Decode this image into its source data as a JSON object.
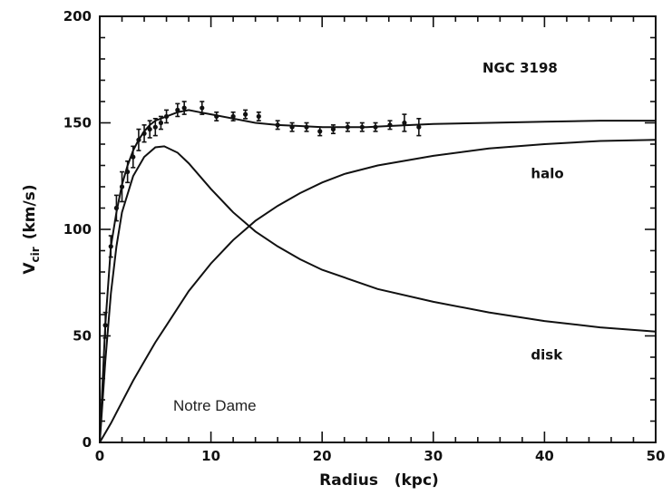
{
  "chart_data": {
    "type": "line",
    "annotation": "NGC 3198",
    "watermark": "Notre Dame",
    "xlabel": "Radius   (kpc)",
    "ylabel_main": "V",
    "ylabel_sub": "cir",
    "ylabel_unit": "(km/s)",
    "xlim": [
      0,
      50
    ],
    "ylim": [
      0,
      200
    ],
    "x_ticks": [
      "0",
      "10",
      "20",
      "30",
      "40",
      "50"
    ],
    "y_ticks": [
      "0",
      "50",
      "100",
      "150",
      "200"
    ],
    "grid": false,
    "series": [
      {
        "name": "",
        "kind": "total-fit",
        "x": [
          0,
          0.5,
          1,
          1.5,
          2,
          2.5,
          3,
          3.5,
          4,
          4.5,
          5,
          6,
          7,
          8,
          9,
          10,
          12,
          14,
          16,
          18,
          20,
          22,
          24,
          26,
          28,
          30,
          35,
          40,
          45,
          50
        ],
        "y": [
          0,
          55,
          92,
          108,
          121,
          130,
          137,
          142,
          146,
          149,
          151,
          153,
          155,
          156,
          155,
          154,
          152,
          150,
          149,
          148.5,
          148,
          148,
          148,
          148.5,
          149,
          149.5,
          150,
          150.5,
          151,
          151
        ]
      },
      {
        "name": "halo",
        "kind": "component",
        "x": [
          0,
          1,
          2,
          3,
          4,
          5,
          6,
          8,
          10,
          12,
          14,
          16,
          18,
          20,
          22,
          25,
          30,
          35,
          40,
          45,
          50
        ],
        "y": [
          0,
          9,
          19,
          29,
          38,
          47,
          55,
          71,
          84,
          95,
          104,
          111,
          117,
          122,
          126,
          130,
          134.5,
          138,
          140,
          141.5,
          142
        ]
      },
      {
        "name": "disk",
        "kind": "component",
        "x": [
          0,
          0.5,
          1,
          1.5,
          2,
          3,
          4,
          5,
          5.8,
          7,
          8,
          10,
          12,
          14,
          16,
          18,
          20,
          25,
          30,
          35,
          40,
          45,
          50
        ],
        "y": [
          0,
          38,
          70,
          92,
          108,
          125,
          134,
          138.5,
          139,
          136,
          131,
          119,
          108,
          99,
          92,
          86,
          81,
          72,
          66,
          61,
          57,
          54,
          52
        ]
      },
      {
        "name": "",
        "kind": "observed",
        "x": [
          0.5,
          1.0,
          1.5,
          2.0,
          2.5,
          3.0,
          3.5,
          4.0,
          4.5,
          5.0,
          5.5,
          6.0,
          7.0,
          7.6,
          9.2,
          10.5,
          12.0,
          13.1,
          14.3,
          16.0,
          17.3,
          18.6,
          19.8,
          21.0,
          22.3,
          23.6,
          24.8,
          26.1,
          27.4,
          28.7
        ],
        "y": [
          55,
          92,
          110,
          120,
          127,
          134,
          142,
          145,
          147,
          148,
          150,
          153,
          156,
          157,
          157,
          153,
          153,
          154,
          153,
          149,
          148,
          148,
          146,
          147,
          148,
          148,
          148,
          149,
          150,
          148
        ],
        "err": [
          6,
          5,
          6,
          7,
          5,
          5,
          5,
          4,
          4,
          4,
          3,
          3,
          3,
          3,
          3,
          2,
          2,
          2,
          2,
          2,
          2,
          2,
          2,
          2,
          2,
          2,
          2,
          2,
          4,
          4
        ]
      }
    ],
    "labels": [
      {
        "text": "halo",
        "x": 40,
        "y": 124
      },
      {
        "text": "disk",
        "x": 40,
        "y": 39
      }
    ]
  }
}
